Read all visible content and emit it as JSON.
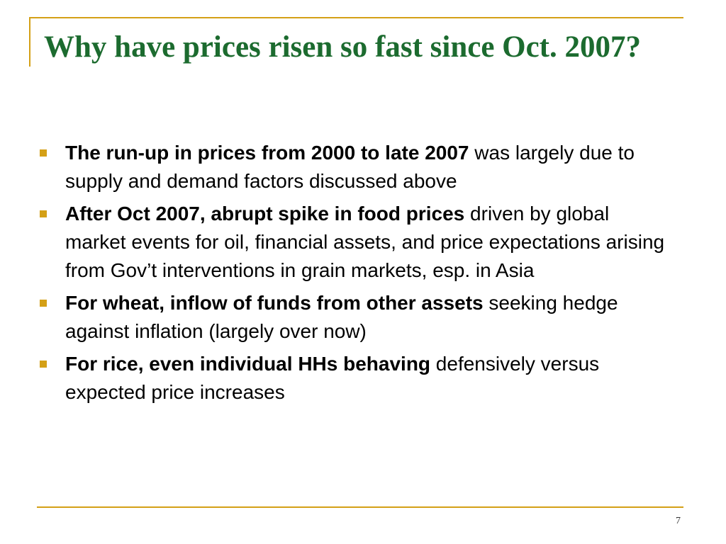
{
  "slide": {
    "title": "Why have prices risen so fast since Oct. 2007?",
    "page_number": "7",
    "accent_color": "#d4a017",
    "title_color": "#1c6b2f",
    "bullets": [
      {
        "bold": "The run-up in prices from 2000 to late 2007",
        "rest": " was largely due to supply and demand factors discussed above"
      },
      {
        "bold": "After Oct 2007, abrupt spike in food prices",
        "rest": " driven by global market events for oil, financial assets, and price expectations arising from Gov’t interventions in grain markets, esp. in Asia"
      },
      {
        "bold": "For wheat, inflow of funds from other assets",
        "rest": " seeking hedge against inflation (largely over now)"
      },
      {
        "bold": "For rice, even individual HHs behaving",
        "rest": " defensively versus expected price increases"
      }
    ]
  }
}
